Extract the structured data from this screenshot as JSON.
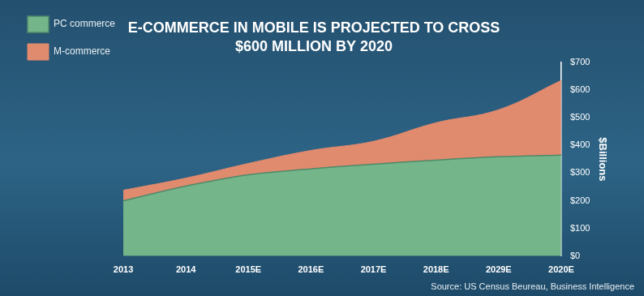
{
  "chart_data": {
    "type": "area",
    "title": [
      "E-COMMERCE IN MOBILE IS PROJECTED TO CROSS",
      "$600 MILLION BY 2020"
    ],
    "categories": [
      "2013",
      "2014",
      "2015E",
      "2016E",
      "2017E",
      "2018E",
      "2029E",
      "2020E"
    ],
    "series": [
      {
        "name": "PC commerce",
        "color": "#74b58a",
        "values": [
          200,
          253,
          294,
          315,
          332,
          347,
          359,
          365
        ]
      },
      {
        "name": "M-commerce",
        "color": "#e08a6e",
        "values": [
          38,
          29,
          41,
          67,
          83,
          135,
          170,
          270
        ]
      }
    ],
    "stacked": true,
    "ylabel": "$Billions",
    "ylim": [
      0,
      700
    ],
    "yticks": [
      {
        "value": 0,
        "label": "$0"
      },
      {
        "value": 100,
        "label": "$100"
      },
      {
        "value": 200,
        "label": "$200"
      },
      {
        "value": 300,
        "label": "$300"
      },
      {
        "value": 400,
        "label": "$400"
      },
      {
        "value": 500,
        "label": "$500"
      },
      {
        "value": 600,
        "label": "$600"
      },
      {
        "value": 700,
        "label": "$700"
      }
    ],
    "grid": false,
    "legend": "upper left",
    "source": "Source: US Census Beureau, Business Intelligence"
  }
}
